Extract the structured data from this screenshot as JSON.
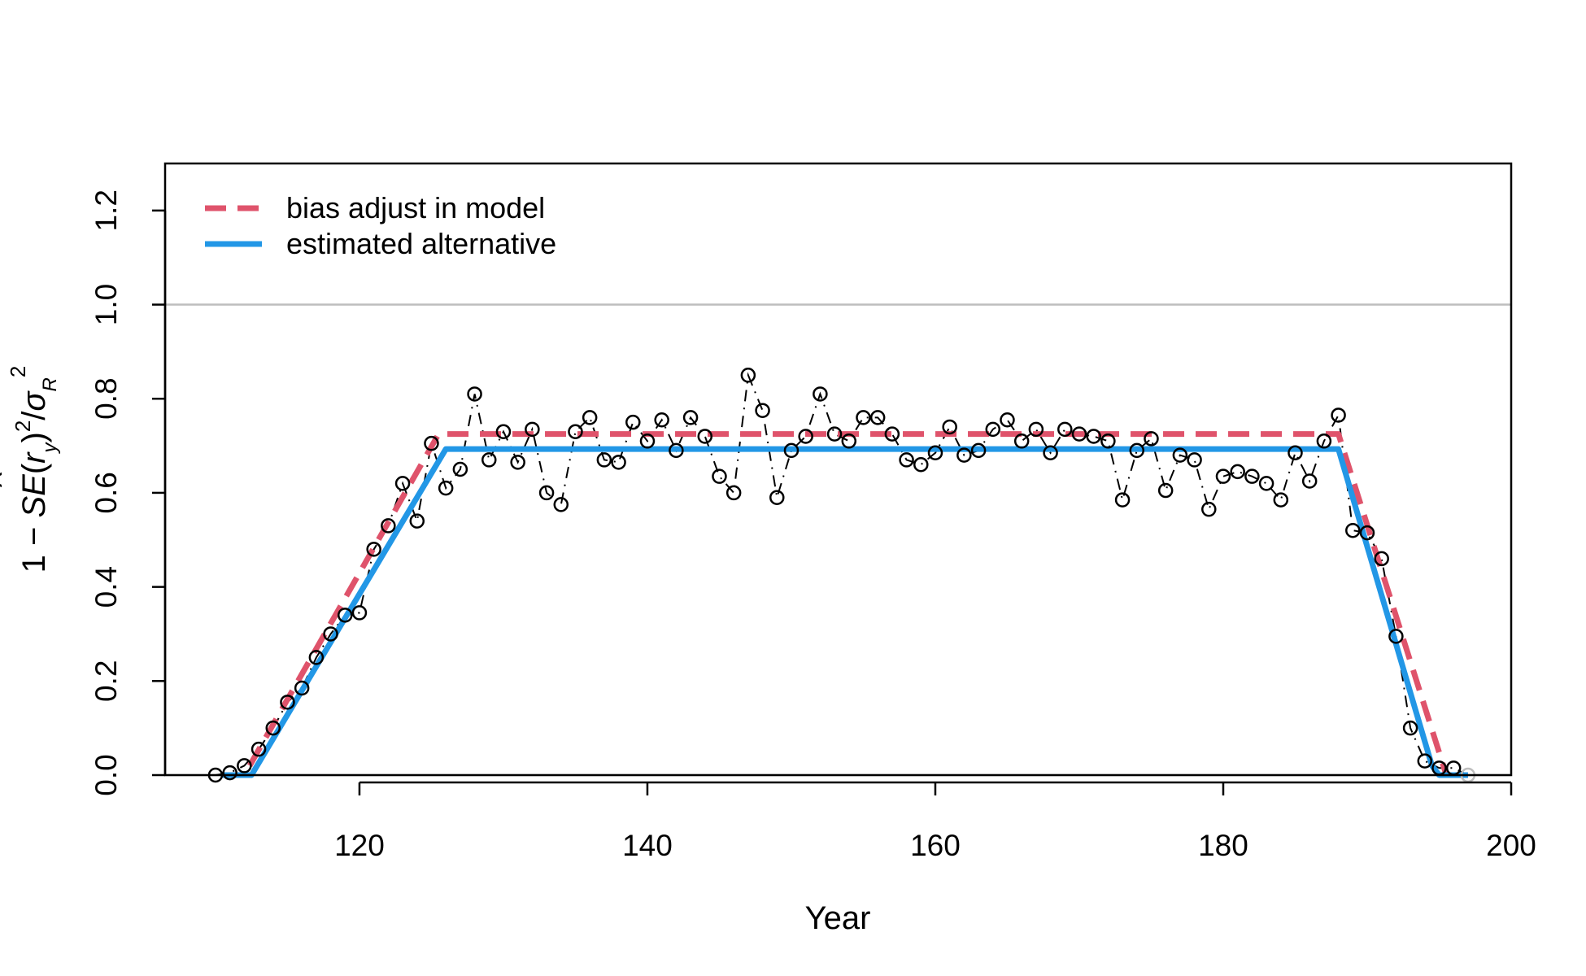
{
  "chart_data": {
    "type": "line",
    "xlabel": "Year",
    "ylabel": "1 − SE(r̂y)²/σR²",
    "ylabel_parts": {
      "lead": "1 − ",
      "se": "SE",
      "r": "r",
      "hat": "^",
      "sub_y": "y",
      "sup2": "2",
      "sigma": "σ",
      "sub_R": "R"
    },
    "xlim": [
      106.5,
      200
    ],
    "ylim": [
      0,
      1.3
    ],
    "xticks": [
      120,
      140,
      160,
      180,
      200
    ],
    "yticks": [
      "0.0",
      "0.2",
      "0.4",
      "0.6",
      "0.8",
      "1.0",
      "1.2"
    ],
    "reference_lines": [
      0,
      1.0
    ],
    "legend": {
      "position": "top-left",
      "entries": [
        {
          "label": "bias adjust in model",
          "color": "#DF536B",
          "dash": "dashed"
        },
        {
          "label": "estimated alternative",
          "color": "#2297E6",
          "dash": "solid"
        }
      ]
    },
    "series": [
      {
        "name": "bias adjust in model",
        "color": "#DF536B",
        "points": [
          [
            110.5,
            0
          ],
          [
            112,
            0
          ],
          [
            125.5,
            0.725
          ],
          [
            188,
            0.725
          ],
          [
            195.5,
            0
          ],
          [
            197,
            0
          ]
        ]
      },
      {
        "name": "estimated alternative",
        "color": "#2297E6",
        "points": [
          [
            110.5,
            0
          ],
          [
            112.5,
            0
          ],
          [
            126,
            0.693
          ],
          [
            188,
            0.693
          ],
          [
            194.5,
            0.02
          ],
          [
            195,
            0
          ],
          [
            197,
            0
          ]
        ]
      }
    ],
    "observations": {
      "x": [
        110,
        111,
        112,
        113,
        114,
        115,
        116,
        117,
        118,
        119,
        120,
        121,
        122,
        123,
        124,
        125,
        126,
        127,
        128,
        129,
        130,
        131,
        132,
        133,
        134,
        135,
        136,
        137,
        138,
        139,
        140,
        141,
        142,
        143,
        144,
        145,
        146,
        147,
        148,
        149,
        150,
        151,
        152,
        153,
        154,
        155,
        156,
        157,
        158,
        159,
        160,
        161,
        162,
        163,
        164,
        165,
        166,
        167,
        168,
        169,
        170,
        171,
        172,
        173,
        174,
        175,
        176,
        177,
        178,
        179,
        180,
        181,
        182,
        183,
        184,
        185,
        186,
        187,
        188,
        189,
        190,
        191,
        192,
        193,
        194,
        195,
        196,
        197
      ],
      "y": [
        0.0,
        0.005,
        0.02,
        0.055,
        0.1,
        0.155,
        0.185,
        0.25,
        0.3,
        0.34,
        0.345,
        0.48,
        0.53,
        0.62,
        0.54,
        0.705,
        0.61,
        0.65,
        0.81,
        0.67,
        0.73,
        0.665,
        0.735,
        0.6,
        0.575,
        0.73,
        0.76,
        0.67,
        0.665,
        0.75,
        0.71,
        0.755,
        0.69,
        0.76,
        0.72,
        0.635,
        0.6,
        0.85,
        0.775,
        0.59,
        0.69,
        0.72,
        0.81,
        0.725,
        0.71,
        0.76,
        0.76,
        0.725,
        0.67,
        0.66,
        0.685,
        0.74,
        0.68,
        0.69,
        0.735,
        0.755,
        0.71,
        0.735,
        0.685,
        0.735,
        0.725,
        0.72,
        0.71,
        0.585,
        0.69,
        0.715,
        0.605,
        0.68,
        0.67,
        0.565,
        0.635,
        0.645,
        0.635,
        0.62,
        0.585,
        0.685,
        0.625,
        0.71,
        0.765,
        0.52,
        0.515,
        0.46,
        0.295,
        0.1,
        0.03,
        0.015,
        0.015,
        0.0
      ]
    }
  }
}
